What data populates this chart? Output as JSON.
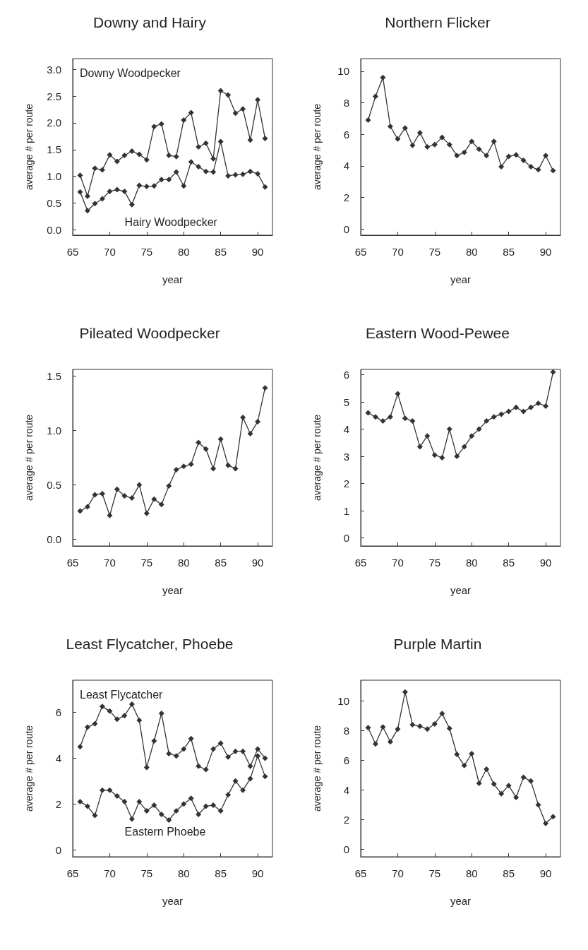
{
  "chart_data": [
    {
      "type": "line",
      "title": "Downy and Hairy",
      "xlabel": "year",
      "ylabel": "average # per route",
      "x": [
        66,
        67,
        68,
        69,
        70,
        71,
        72,
        73,
        74,
        75,
        76,
        77,
        78,
        79,
        80,
        81,
        82,
        83,
        84,
        85,
        86,
        87,
        88,
        89,
        90,
        91
      ],
      "xlim": [
        65,
        92
      ],
      "xticks": [
        65,
        70,
        75,
        80,
        85,
        90
      ],
      "ylim": [
        -0.1,
        3.2
      ],
      "yticks": [
        {
          "value": 0,
          "label": "0.0"
        },
        0.5,
        {
          "value": 1,
          "label": "1.0"
        },
        1.5,
        {
          "value": 2,
          "label": "2.0"
        },
        2.5,
        {
          "value": 3,
          "label": "3.0"
        }
      ],
      "marker": "diamond",
      "legend": false,
      "grid": false,
      "series": [
        {
          "name": "Downy Woodpecker",
          "color": "#333333",
          "values": [
            1.02,
            0.63,
            1.15,
            1.12,
            1.4,
            1.28,
            1.39,
            1.47,
            1.41,
            1.31,
            1.93,
            1.98,
            1.39,
            1.37,
            2.05,
            2.19,
            1.55,
            1.62,
            1.33,
            2.6,
            2.52,
            2.18,
            2.26,
            1.68,
            2.43,
            1.71
          ]
        },
        {
          "name": "Hairy Woodpecker",
          "color": "#333333",
          "values": [
            0.71,
            0.36,
            0.49,
            0.58,
            0.72,
            0.75,
            0.72,
            0.47,
            0.83,
            0.81,
            0.82,
            0.94,
            0.94,
            1.08,
            0.82,
            1.27,
            1.18,
            1.09,
            1.08,
            1.65,
            1.01,
            1.03,
            1.04,
            1.09,
            1.05,
            0.8
          ]
        }
      ]
    },
    {
      "type": "line",
      "title": "Northern Flicker",
      "xlabel": "year",
      "ylabel": "average # per route",
      "x": [
        66,
        67,
        68,
        69,
        70,
        71,
        72,
        73,
        74,
        75,
        76,
        77,
        78,
        79,
        80,
        81,
        82,
        83,
        84,
        85,
        86,
        87,
        88,
        89,
        90,
        91
      ],
      "xlim": [
        65,
        92
      ],
      "xticks": [
        65,
        70,
        75,
        80,
        85,
        90
      ],
      "ylim": [
        -0.4,
        10.8
      ],
      "yticks": [
        0,
        2,
        4,
        6,
        8,
        10
      ],
      "marker": "diamond",
      "legend": false,
      "grid": false,
      "series": [
        {
          "color": "#333333",
          "values": [
            6.9,
            8.4,
            9.6,
            6.5,
            5.7,
            6.4,
            5.3,
            6.1,
            5.2,
            5.35,
            5.8,
            5.35,
            4.65,
            4.85,
            5.55,
            5.05,
            4.65,
            5.55,
            3.95,
            4.6,
            4.7,
            4.35,
            3.95,
            3.75,
            4.65,
            3.7
          ]
        }
      ]
    },
    {
      "type": "line",
      "title": "Pileated Woodpecker",
      "xlabel": "year",
      "ylabel": "average # per route",
      "x": [
        66,
        67,
        68,
        69,
        70,
        71,
        72,
        73,
        74,
        75,
        76,
        77,
        78,
        79,
        80,
        81,
        82,
        83,
        84,
        85,
        86,
        87,
        88,
        89,
        90,
        91
      ],
      "xlim": [
        65,
        92
      ],
      "xticks": [
        65,
        70,
        75,
        80,
        85,
        90
      ],
      "ylim": [
        -0.06,
        1.56
      ],
      "yticks": [
        {
          "value": 0,
          "label": "0.0"
        },
        0.5,
        {
          "value": 1,
          "label": "1.0"
        },
        1.5
      ],
      "marker": "diamond",
      "legend": false,
      "grid": false,
      "series": [
        {
          "color": "#333333",
          "values": [
            0.26,
            0.3,
            0.41,
            0.42,
            0.22,
            0.46,
            0.4,
            0.38,
            0.5,
            0.24,
            0.37,
            0.32,
            0.49,
            0.64,
            0.67,
            0.69,
            0.89,
            0.83,
            0.65,
            0.92,
            0.68,
            0.65,
            1.12,
            0.97,
            1.08,
            1.39
          ]
        }
      ]
    },
    {
      "type": "line",
      "title": "Eastern Wood-Pewee",
      "xlabel": "year",
      "ylabel": "average # per route",
      "x": [
        66,
        67,
        68,
        69,
        70,
        71,
        72,
        73,
        74,
        75,
        76,
        77,
        78,
        79,
        80,
        81,
        82,
        83,
        84,
        85,
        86,
        87,
        88,
        89,
        90,
        91
      ],
      "xlim": [
        65,
        92
      ],
      "xticks": [
        65,
        70,
        75,
        80,
        85,
        90
      ],
      "ylim": [
        -0.3,
        6.2
      ],
      "yticks": [
        0,
        1,
        2,
        3,
        4,
        5,
        6
      ],
      "marker": "diamond",
      "legend": false,
      "grid": false,
      "series": [
        {
          "color": "#333333",
          "values": [
            4.6,
            4.45,
            4.3,
            4.45,
            5.3,
            4.4,
            4.3,
            3.35,
            3.75,
            3.05,
            2.95,
            4.0,
            3.0,
            3.35,
            3.75,
            4.0,
            4.3,
            4.45,
            4.55,
            4.65,
            4.8,
            4.65,
            4.8,
            4.95,
            4.85,
            6.1
          ]
        }
      ]
    },
    {
      "type": "line",
      "title": "Least Flycatcher, Phoebe",
      "xlabel": "year",
      "ylabel": "average # per route",
      "x": [
        66,
        67,
        68,
        69,
        70,
        71,
        72,
        73,
        74,
        75,
        76,
        77,
        78,
        79,
        80,
        81,
        82,
        83,
        84,
        85,
        86,
        87,
        88,
        89,
        90,
        91
      ],
      "xlim": [
        65,
        92
      ],
      "xticks": [
        65,
        70,
        75,
        80,
        85,
        90
      ],
      "ylim": [
        -0.3,
        7.4
      ],
      "yticks": [
        0,
        2,
        4,
        6
      ],
      "marker": "diamond",
      "legend": false,
      "grid": false,
      "series": [
        {
          "name": "Least Flycatcher",
          "color": "#333333",
          "values": [
            4.5,
            5.35,
            5.5,
            6.25,
            6.05,
            5.7,
            5.85,
            6.35,
            5.65,
            3.6,
            4.75,
            5.95,
            4.2,
            4.1,
            4.4,
            4.85,
            3.65,
            3.5,
            4.4,
            4.65,
            4.05,
            4.3,
            4.3,
            3.65,
            4.4,
            4.0
          ]
        },
        {
          "name": "Eastern Phoebe",
          "color": "#333333",
          "values": [
            2.1,
            1.9,
            1.5,
            2.6,
            2.6,
            2.35,
            2.1,
            1.35,
            2.1,
            1.7,
            1.95,
            1.55,
            1.3,
            1.7,
            2.0,
            2.25,
            1.55,
            1.9,
            1.95,
            1.7,
            2.4,
            3.0,
            2.6,
            3.1,
            4.1,
            3.2
          ]
        }
      ]
    },
    {
      "type": "line",
      "title": "Purple Martin",
      "xlabel": "year",
      "ylabel": "average # per route",
      "x": [
        66,
        67,
        68,
        69,
        70,
        71,
        72,
        73,
        74,
        75,
        76,
        77,
        78,
        79,
        80,
        81,
        82,
        83,
        84,
        85,
        86,
        87,
        88,
        89,
        90,
        91
      ],
      "xlim": [
        65,
        92
      ],
      "xticks": [
        65,
        70,
        75,
        80,
        85,
        90
      ],
      "ylim": [
        -0.5,
        11.4
      ],
      "yticks": [
        0,
        2,
        4,
        6,
        8,
        10
      ],
      "marker": "diamond",
      "legend": false,
      "grid": false,
      "series": [
        {
          "color": "#333333",
          "values": [
            8.2,
            7.1,
            8.25,
            7.25,
            8.1,
            10.6,
            8.4,
            8.3,
            8.1,
            8.45,
            9.15,
            8.15,
            6.4,
            5.65,
            6.45,
            4.45,
            5.4,
            4.4,
            3.75,
            4.3,
            3.5,
            4.85,
            4.6,
            3.0,
            1.75,
            2.2
          ]
        }
      ]
    }
  ]
}
